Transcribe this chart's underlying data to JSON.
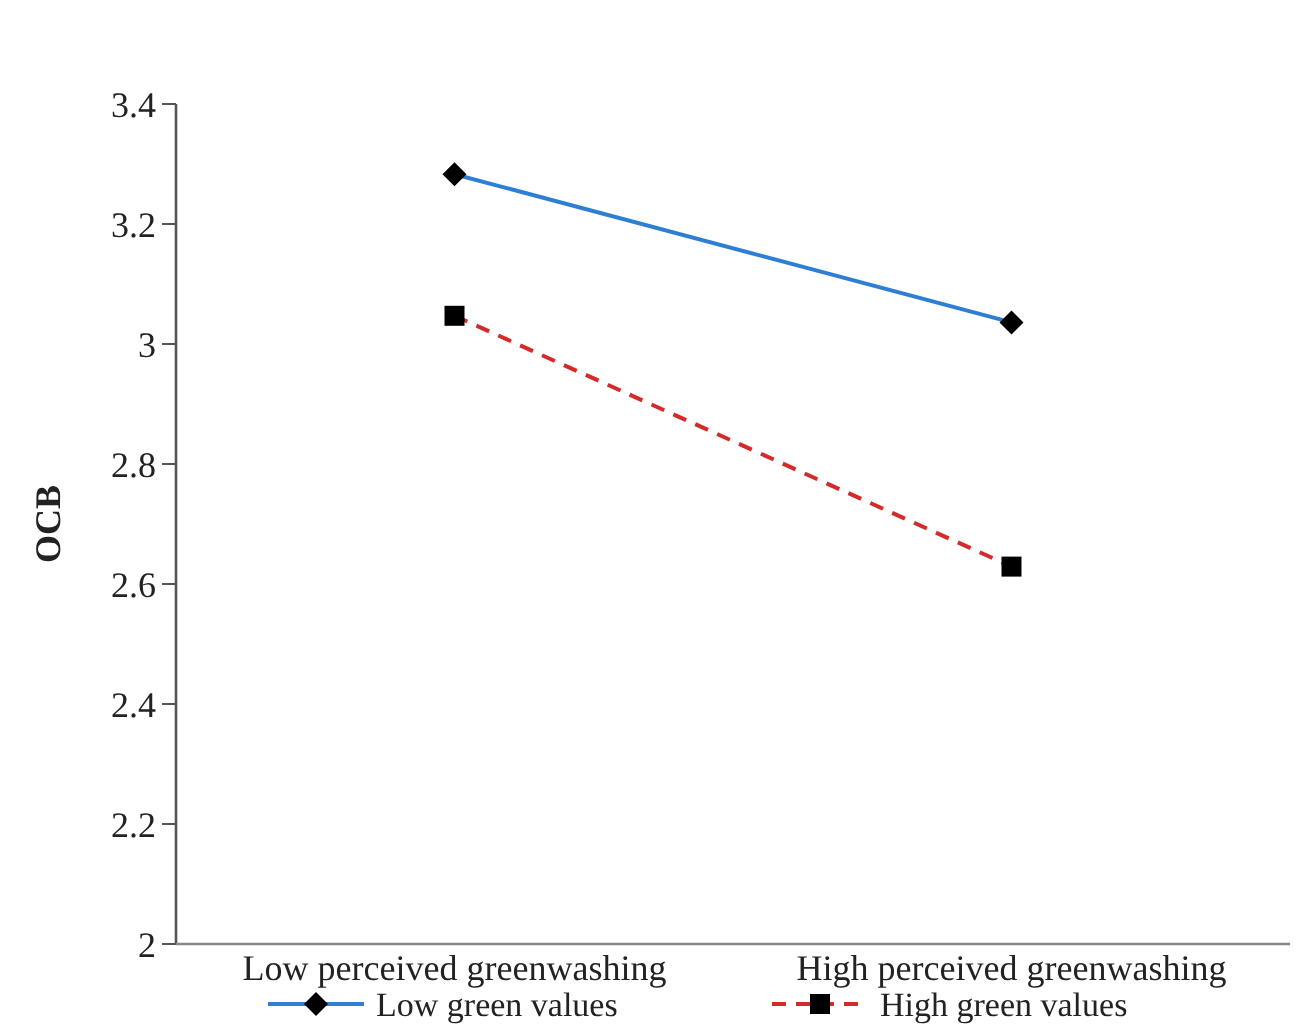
{
  "chart_data": {
    "type": "line",
    "ylabel": "OCB",
    "categories": [
      "Low perceived greenwashing",
      "High perceived greenwashing"
    ],
    "series": [
      {
        "name": "Low green values",
        "color": "#2e7fd4",
        "values": [
          3.283,
          3.036
        ],
        "marker": "diamond",
        "line_style": "solid"
      },
      {
        "name": "High green values",
        "color": "#d42a2a",
        "values": [
          3.047,
          2.629
        ],
        "marker": "square",
        "line_style": "dashed"
      }
    ],
    "ylim": [
      2,
      3.4
    ],
    "yticks": [
      2,
      2.2,
      2.4,
      2.6,
      2.8,
      3,
      3.2,
      3.4
    ],
    "grid": false,
    "legend": "bottom"
  }
}
